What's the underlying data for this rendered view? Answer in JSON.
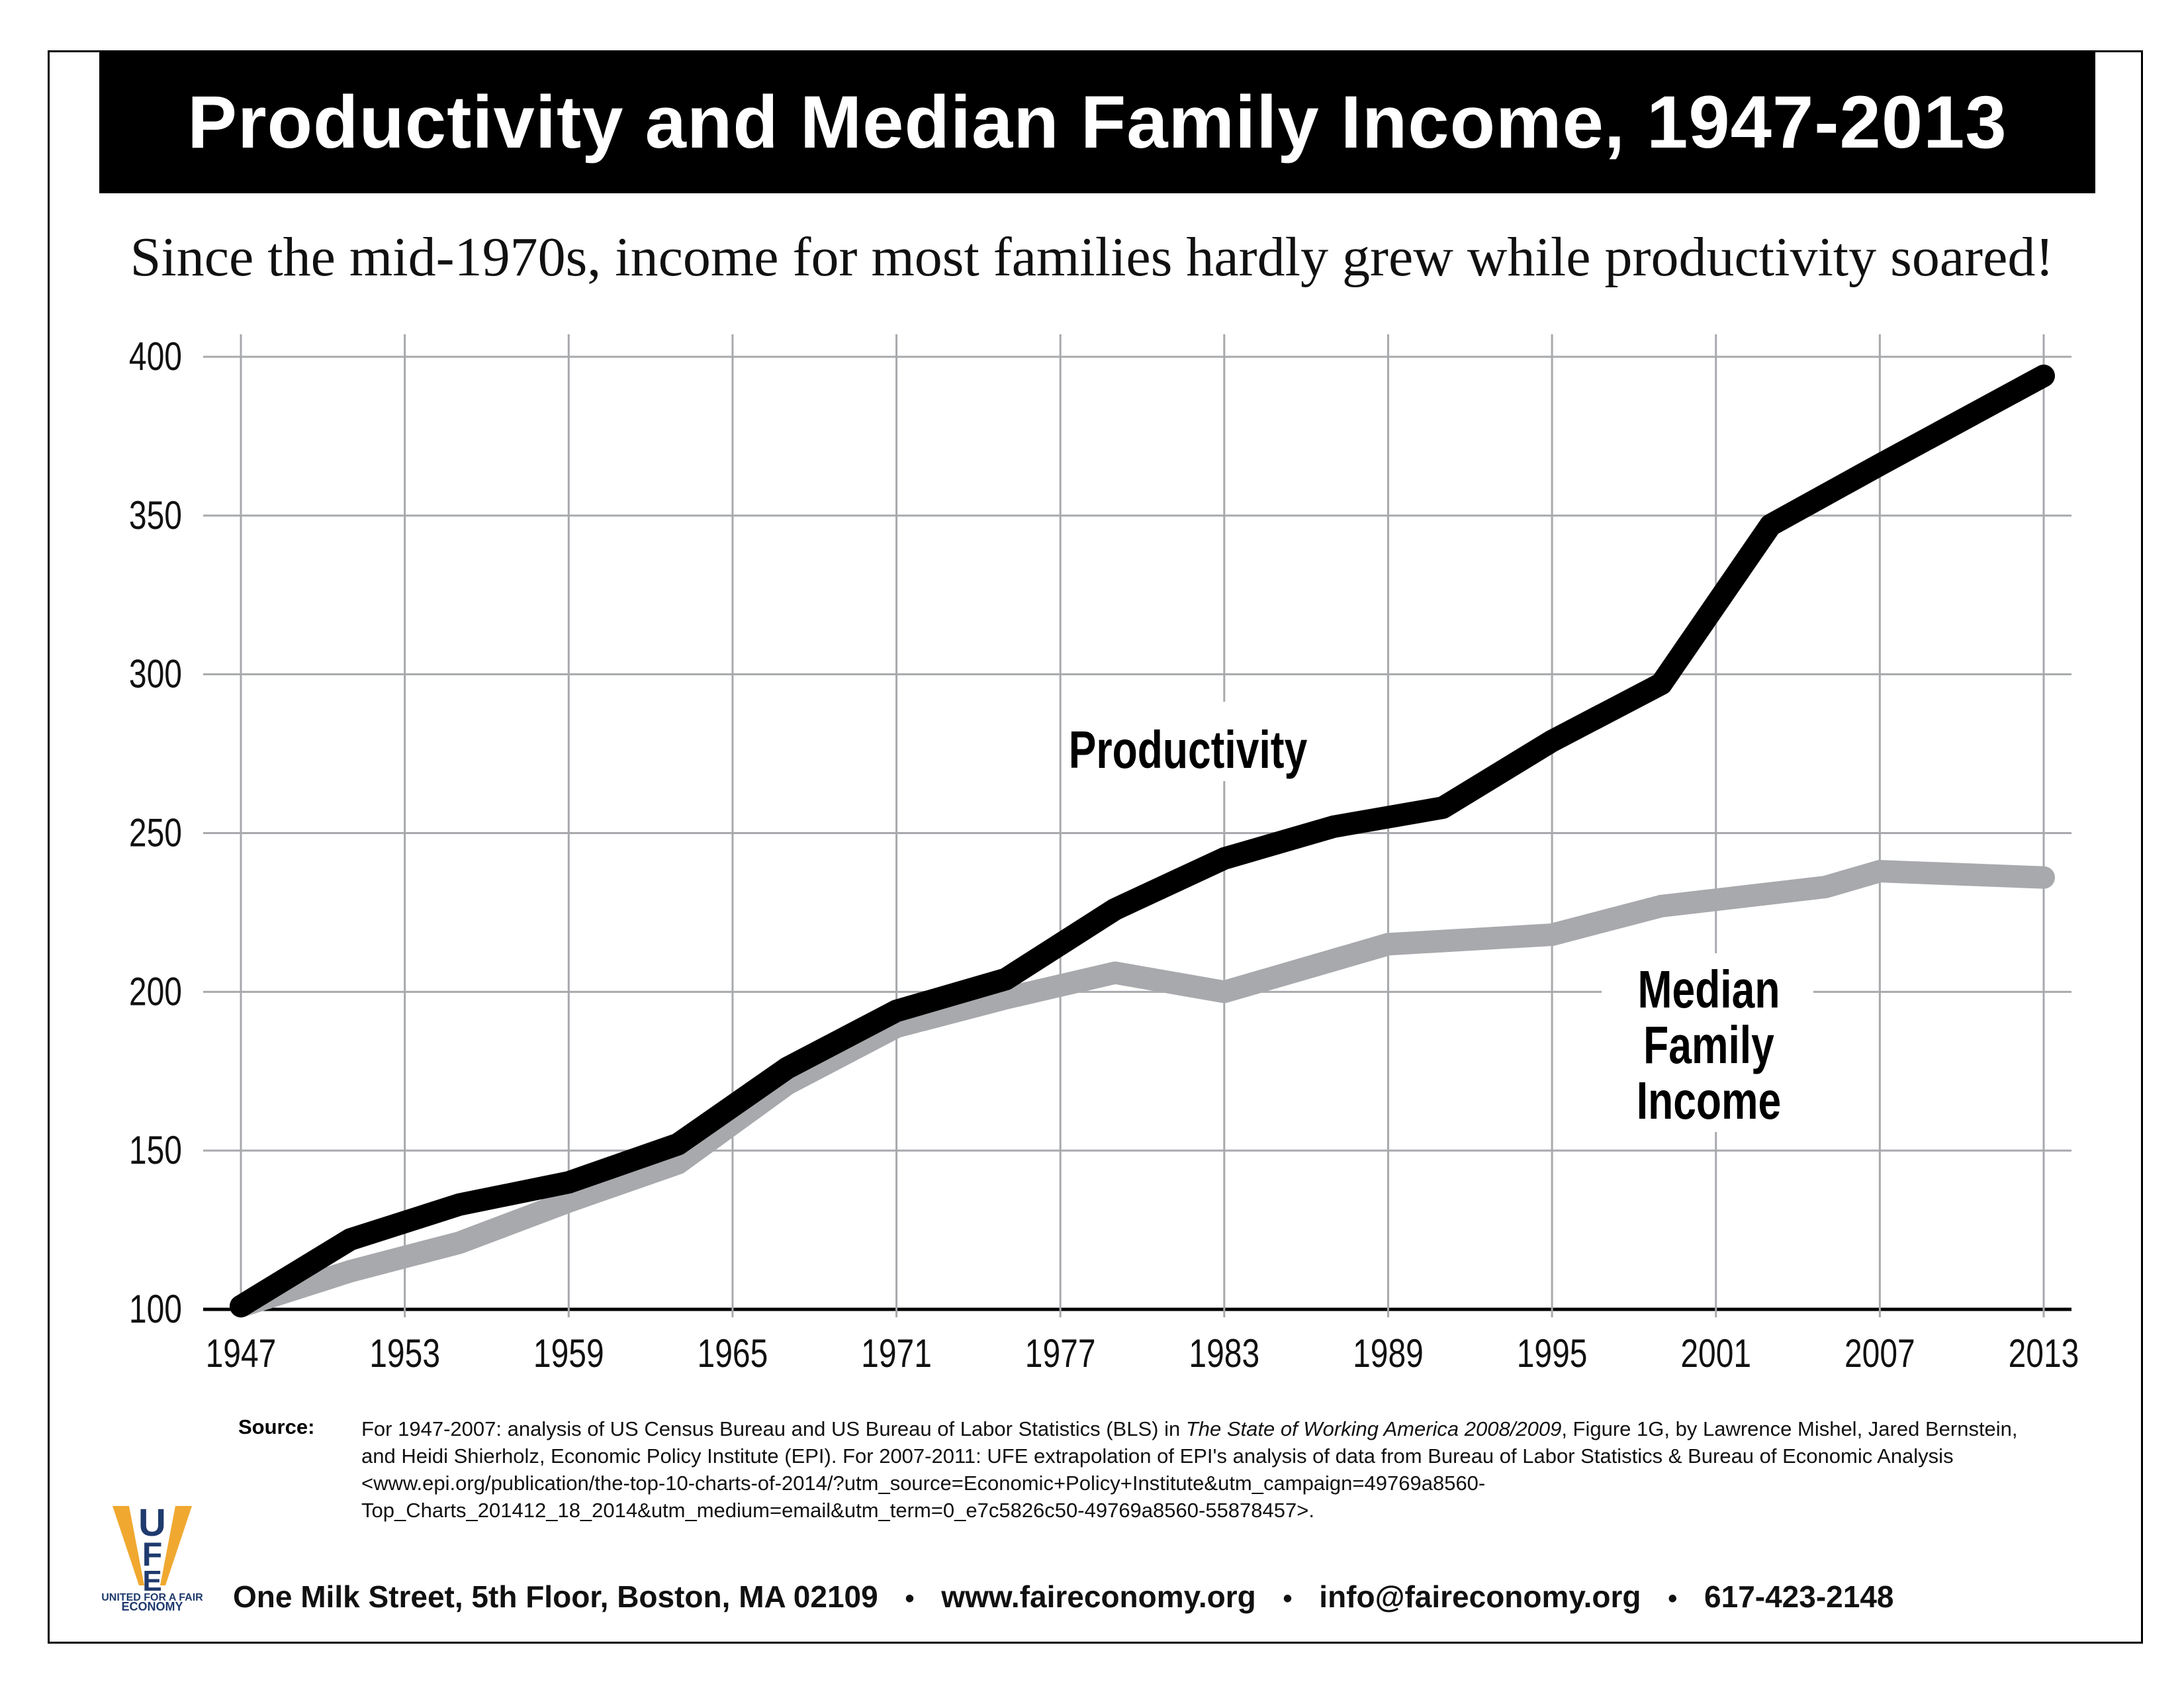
{
  "title": "Productivity and Median Family Income, 1947-2013",
  "subtitle": "Since the mid-1970s, income for most families hardly grew while productivity soared!",
  "chart_data": {
    "type": "line",
    "title": "Productivity and Median Family Income, 1947-2013",
    "subtitle": "Since the mid-1970s, income for most families hardly grew while productivity soared!",
    "xlim": [
      1947,
      2013
    ],
    "ylim": [
      100,
      400
    ],
    "x_ticks": [
      "1947",
      "1953",
      "1959",
      "1965",
      "1971",
      "1977",
      "1983",
      "1989",
      "1995",
      "2001",
      "2007",
      "2013"
    ],
    "y_ticks": [
      "100",
      "150",
      "200",
      "250",
      "300",
      "350",
      "400"
    ],
    "grid": true,
    "series": [
      {
        "name": "Productivity",
        "color": "#000000",
        "x": [
          1947,
          1951,
          1955,
          1959,
          1963,
          1967,
          1971,
          1975,
          1979,
          1983,
          1987,
          1991,
          1995,
          1999,
          2003,
          2007,
          2013
        ],
        "y": [
          101,
          122,
          133,
          140,
          152,
          176,
          194,
          204,
          226,
          242,
          252,
          258,
          279,
          297,
          347,
          366,
          394
        ]
      },
      {
        "name": "Median Family Income",
        "color": "#a7a9ac",
        "x": [
          1947,
          1951,
          1955,
          1959,
          1963,
          1967,
          1971,
          1975,
          1979,
          1983,
          1989,
          1995,
          1999,
          2005,
          2007,
          2013
        ],
        "y": [
          101,
          112,
          121,
          134,
          146,
          171,
          189,
          198,
          206,
          200,
          215,
          218,
          227,
          233,
          238,
          236
        ]
      }
    ],
    "labels": {
      "productivity": "Productivity",
      "median": [
        "Median",
        "Family",
        "Income"
      ]
    }
  },
  "source": {
    "label": "Source:",
    "text_1": "For 1947-2007: analysis of US Census Bureau and US Bureau of Labor Statistics (BLS) in ",
    "italic": "The State of Working America 2008/2009",
    "text_2": ", Figure 1G, by Lawrence Mishel, Jared Bernstein, and Heidi Shierholz, Economic Policy Institute (EPI). For 2007-2011: UFE extrapolation of EPI's analysis of data from Bureau of Labor Statistics & Bureau of Economic Analysis <www.epi.org/publication/the-top-10-charts-of-2014/?utm_source=Economic+Policy+Institute&utm_campaign=49769a8560-Top_Charts_201412_18_2014&utm_medium=email&utm_term=0_e7c5826c50-49769a8560-55878457>."
  },
  "footer": {
    "address": "One Milk Street, 5th Floor, Boston, MA 02109",
    "website": "www.faireconomy.org",
    "email": "info@faireconomy.org",
    "phone": "617-423-2148",
    "bullet": "•"
  },
  "logo": {
    "letters": "UFE",
    "text": "UNITED FOR A FAIR ECONOMY",
    "colors": {
      "navy": "#1f3a6e",
      "gold": "#f0a830"
    }
  }
}
